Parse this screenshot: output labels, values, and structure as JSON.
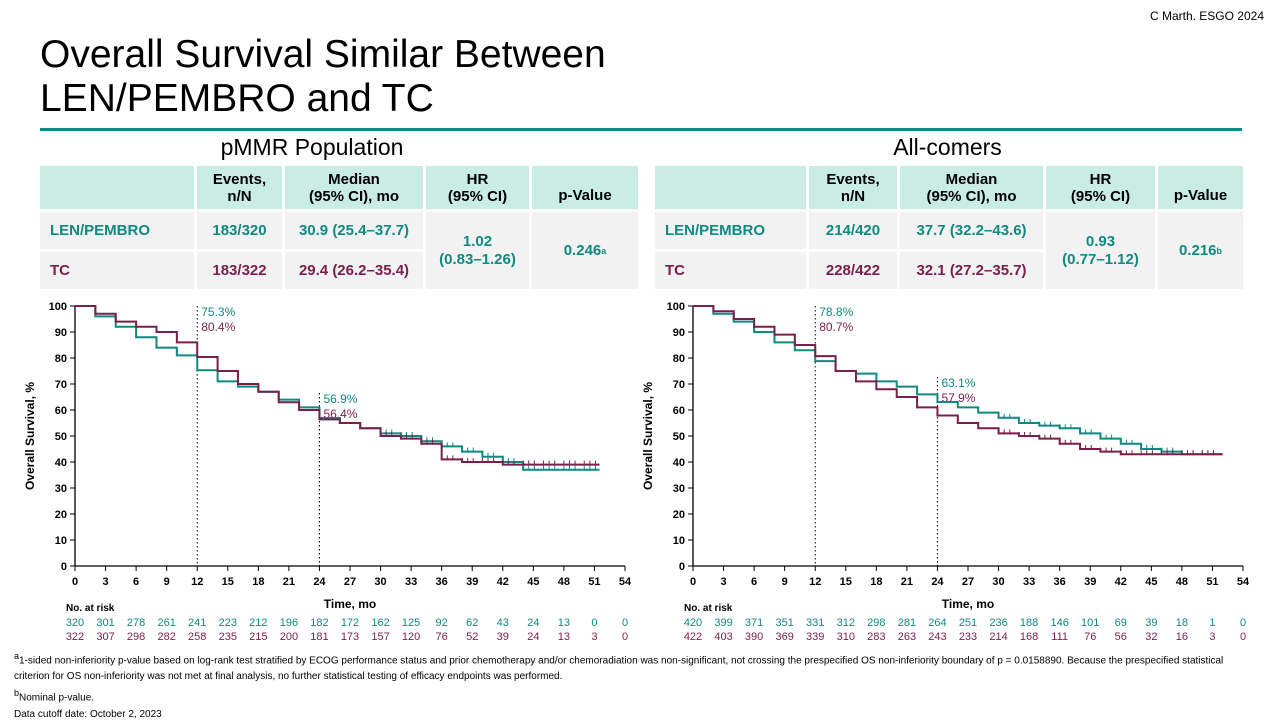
{
  "credit": "C Marth.  ESGO 2024",
  "title_line1": "Overall Survival Similar Between",
  "title_line2": "LEN/PEMBRO and TC",
  "colors": {
    "teal": "#0f8a80",
    "plum": "#7a1f4a",
    "header_bg": "#c9ece5",
    "body_bg": "#f2f2f2"
  },
  "panels": [
    {
      "population": "pMMR Population",
      "headers": {
        "events": [
          "Events,",
          "n/N"
        ],
        "median": [
          "Median",
          "(95% CI), mo"
        ],
        "hr": [
          "HR",
          "(95% CI)"
        ],
        "p": "p-Value"
      },
      "rows": [
        {
          "arm": "LEN/PEMBRO",
          "events": "183/320",
          "median": "30.9 (25.4–37.7)"
        },
        {
          "arm": "TC",
          "events": "183/322",
          "median": "29.4 (26.2–35.4)"
        }
      ],
      "hr_value": "1.02",
      "hr_ci": "(0.83–1.26)",
      "p_value": "0.246",
      "p_sup": "a"
    },
    {
      "population": "All-comers",
      "headers": {
        "events": [
          "Events,",
          "n/N"
        ],
        "median": [
          "Median",
          "(95% CI), mo"
        ],
        "hr": [
          "HR",
          "(95% CI)"
        ],
        "p": "p-Value"
      },
      "rows": [
        {
          "arm": "LEN/PEMBRO",
          "events": "214/420",
          "median": "37.7 (32.2–43.6)"
        },
        {
          "arm": "TC",
          "events": "228/422",
          "median": "32.1 (27.2–35.7)"
        }
      ],
      "hr_value": "0.93",
      "hr_ci": "(0.77–1.12)",
      "p_value": "0.216",
      "p_sup": "b"
    }
  ],
  "chart_data": [
    {
      "type": "line",
      "ylabel": "Overall Survival, %",
      "xlabel": "Time, mo",
      "xlim": [
        0,
        54
      ],
      "ylim": [
        0,
        100
      ],
      "xticks": [
        0,
        3,
        6,
        9,
        12,
        15,
        18,
        21,
        24,
        27,
        30,
        33,
        36,
        39,
        42,
        45,
        48,
        51,
        54
      ],
      "yticks": [
        0,
        10,
        20,
        30,
        40,
        50,
        60,
        70,
        80,
        90,
        100
      ],
      "landmarks": [
        {
          "x": 12,
          "labels": [
            "75.3%",
            "80.4%"
          ]
        },
        {
          "x": 24,
          "labels": [
            "56.9%",
            "56.4%"
          ]
        }
      ],
      "series": [
        {
          "color": "teal",
          "x": [
            0,
            2,
            4,
            6,
            8,
            10,
            12,
            14,
            16,
            18,
            20,
            22,
            24,
            26,
            28,
            30,
            32,
            34,
            36,
            38,
            40,
            42,
            44,
            46,
            48,
            50,
            51.5
          ],
          "y": [
            100,
            96,
            92,
            88,
            84,
            81,
            75.3,
            71,
            69,
            67,
            64,
            61,
            56.9,
            55,
            53,
            51,
            50,
            48,
            46,
            44,
            42,
            40,
            37,
            37,
            37,
            37,
            37
          ]
        },
        {
          "color": "plum",
          "x": [
            0,
            2,
            4,
            6,
            8,
            10,
            12,
            14,
            16,
            18,
            20,
            22,
            24,
            26,
            28,
            30,
            32,
            34,
            36,
            38,
            40,
            42,
            44,
            46,
            48,
            50,
            51.5
          ],
          "y": [
            100,
            97,
            94,
            92,
            90,
            86,
            80.4,
            75,
            70,
            67,
            63,
            60,
            56.4,
            55,
            53,
            50,
            49,
            47,
            41,
            40,
            40,
            39,
            39,
            39,
            39,
            39,
            39
          ]
        }
      ],
      "risk_label": "No. at risk",
      "risk_rows": [
        {
          "color": "teal",
          "values": [
            "320",
            "301",
            "278",
            "261",
            "241",
            "223",
            "212",
            "196",
            "182",
            "172",
            "162",
            "125",
            "92",
            "62",
            "43",
            "24",
            "13",
            "0",
            "0"
          ]
        },
        {
          "color": "plum",
          "values": [
            "322",
            "307",
            "298",
            "282",
            "258",
            "235",
            "215",
            "200",
            "181",
            "173",
            "157",
            "120",
            "76",
            "52",
            "39",
            "24",
            "13",
            "3",
            "0"
          ]
        }
      ]
    },
    {
      "type": "line",
      "ylabel": "Overall Survival, %",
      "xlabel": "Time, mo",
      "xlim": [
        0,
        54
      ],
      "ylim": [
        0,
        100
      ],
      "xticks": [
        0,
        3,
        6,
        9,
        12,
        15,
        18,
        21,
        24,
        27,
        30,
        33,
        36,
        39,
        42,
        45,
        48,
        51,
        54
      ],
      "yticks": [
        0,
        10,
        20,
        30,
        40,
        50,
        60,
        70,
        80,
        90,
        100
      ],
      "landmarks": [
        {
          "x": 12,
          "labels": [
            "78.8%",
            "80.7%"
          ]
        },
        {
          "x": 24,
          "labels": [
            "63.1%",
            "57.9%"
          ]
        }
      ],
      "series": [
        {
          "color": "teal",
          "x": [
            0,
            2,
            4,
            6,
            8,
            10,
            12,
            14,
            16,
            18,
            20,
            22,
            24,
            26,
            28,
            30,
            32,
            34,
            36,
            38,
            40,
            42,
            44,
            46,
            48,
            50,
            52
          ],
          "y": [
            100,
            97,
            94,
            90,
            86,
            83,
            78.8,
            75,
            74,
            71,
            69,
            66,
            63.1,
            61,
            59,
            57,
            55,
            54,
            53,
            51,
            49,
            47,
            45,
            44,
            43,
            43,
            43
          ]
        },
        {
          "color": "plum",
          "x": [
            0,
            2,
            4,
            6,
            8,
            10,
            12,
            14,
            16,
            18,
            20,
            22,
            24,
            26,
            28,
            30,
            32,
            34,
            36,
            38,
            40,
            42,
            44,
            46,
            48,
            50,
            52
          ],
          "y": [
            100,
            98,
            95,
            92,
            89,
            85,
            80.7,
            75,
            71,
            68,
            65,
            61,
            57.9,
            55,
            53,
            51,
            50,
            49,
            47,
            45,
            44,
            43,
            43,
            43,
            43,
            43,
            43
          ]
        }
      ],
      "risk_label": "No. at risk",
      "risk_rows": [
        {
          "color": "teal",
          "values": [
            "420",
            "399",
            "371",
            "351",
            "331",
            "312",
            "298",
            "281",
            "264",
            "251",
            "236",
            "188",
            "146",
            "101",
            "69",
            "39",
            "18",
            "1",
            "0"
          ]
        },
        {
          "color": "plum",
          "values": [
            "422",
            "403",
            "390",
            "369",
            "339",
            "310",
            "283",
            "263",
            "243",
            "233",
            "214",
            "168",
            "111",
            "76",
            "56",
            "32",
            "16",
            "3",
            "0"
          ]
        }
      ]
    }
  ],
  "footnotes": {
    "a_sup": "a",
    "a": "1-sided non-inferiority p-value based on log-rank test stratified by ECOG performance status and prior chemotherapy and/or chemoradiation was non-significant, not crossing the prespecified OS non-inferiority boundary of p = 0.0158890. Because the prespecified statistical criterion for OS non-inferiority was not met at final analysis, no further statistical testing of efficacy endpoints was performed.",
    "b_sup": "b",
    "b": "Nominal p-value.",
    "cutoff": "Data cutoff date: October 2, 2023"
  }
}
